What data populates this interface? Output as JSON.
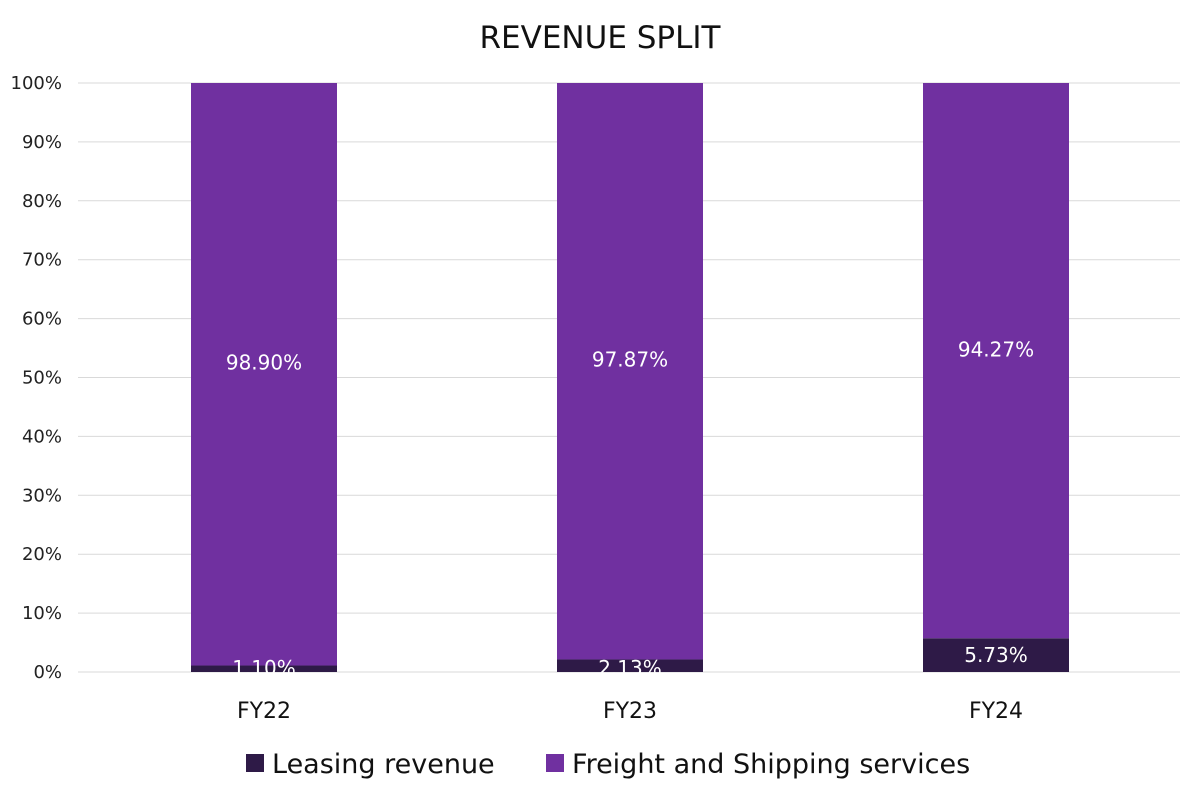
{
  "chart_data": {
    "type": "bar",
    "stacked": true,
    "title": "REVENUE SPLIT",
    "xlabel": "",
    "ylabel": "",
    "categories": [
      "FY22",
      "FY23",
      "FY24"
    ],
    "series": [
      {
        "name": "Leasing revenue",
        "color": "#2e1a47",
        "values": [
          1.1,
          2.13,
          5.73
        ],
        "labels": [
          "1.10%",
          "2.13%",
          "5.73%"
        ]
      },
      {
        "name": "Freight and Shipping services",
        "color": "#7030a0",
        "values": [
          98.9,
          97.87,
          94.27
        ],
        "labels": [
          "98.90%",
          "97.87%",
          "94.27%"
        ]
      }
    ],
    "ylim": [
      0,
      100
    ],
    "yticks": [
      0,
      10,
      20,
      30,
      40,
      50,
      60,
      70,
      80,
      90,
      100
    ],
    "ytick_labels": [
      "0%",
      "10%",
      "20%",
      "30%",
      "40%",
      "50%",
      "60%",
      "70%",
      "80%",
      "90%",
      "100%"
    ],
    "grid": true,
    "legend_position": "bottom-center"
  }
}
